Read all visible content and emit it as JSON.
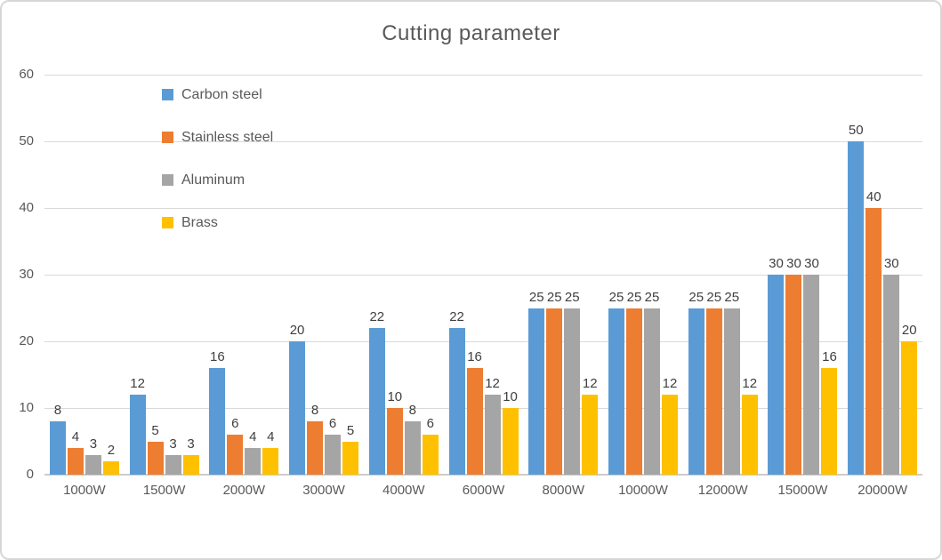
{
  "chart_data": {
    "type": "bar",
    "title": "Cutting parameter",
    "categories": [
      "1000W",
      "1500W",
      "2000W",
      "3000W",
      "4000W",
      "6000W",
      "8000W",
      "10000W",
      "12000W",
      "15000W",
      "20000W"
    ],
    "series": [
      {
        "name": "Carbon steel",
        "color": "#5B9BD5",
        "values": [
          8,
          12,
          16,
          20,
          22,
          22,
          25,
          25,
          25,
          30,
          50
        ]
      },
      {
        "name": "Stainless steel",
        "color": "#ED7D31",
        "values": [
          4,
          5,
          6,
          8,
          10,
          16,
          25,
          25,
          25,
          30,
          40
        ]
      },
      {
        "name": "Aluminum",
        "color": "#A5A5A5",
        "values": [
          3,
          3,
          4,
          6,
          8,
          12,
          25,
          25,
          25,
          30,
          30
        ]
      },
      {
        "name": "Brass",
        "color": "#FFC000",
        "values": [
          2,
          3,
          4,
          5,
          6,
          10,
          12,
          12,
          12,
          16,
          20
        ]
      }
    ],
    "xlabel": "",
    "ylabel": "",
    "ylim": [
      0,
      60
    ],
    "yticks": [
      0,
      10,
      20,
      30,
      40,
      50,
      60
    ],
    "grid": true,
    "data_labels": true,
    "legend_position": "upper-left-vertical"
  }
}
